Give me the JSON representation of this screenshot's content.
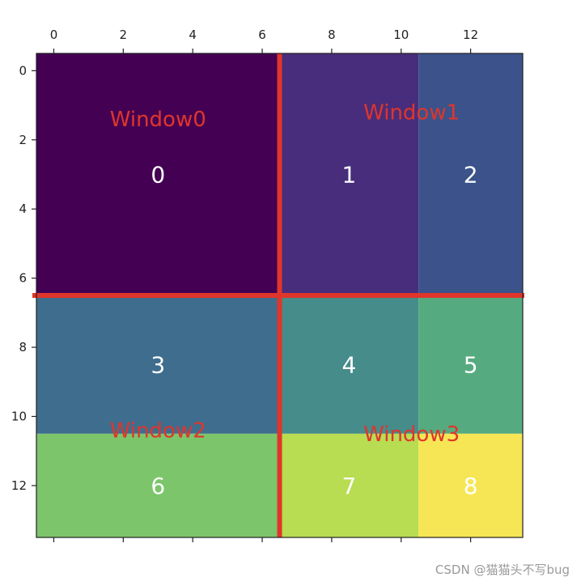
{
  "chart_data": {
    "type": "heatmap",
    "title": "",
    "xlabel": "",
    "ylabel": "",
    "xlim": [
      -0.5,
      13.5
    ],
    "ylim": [
      13.5,
      -0.5
    ],
    "xticks": [
      0,
      2,
      4,
      6,
      8,
      10,
      12
    ],
    "yticks": [
      0,
      2,
      4,
      6,
      8,
      10,
      12
    ],
    "x_axis_position": "top",
    "colormap": "viridis",
    "regions": [
      {
        "label": "0",
        "x": [
          -0.5,
          6.5
        ],
        "y": [
          -0.5,
          6.5
        ],
        "color": "#440154"
      },
      {
        "label": "1",
        "x": [
          6.5,
          10.5
        ],
        "y": [
          -0.5,
          6.5
        ],
        "color": "#472d7b"
      },
      {
        "label": "2",
        "x": [
          10.5,
          13.5
        ],
        "y": [
          -0.5,
          6.5
        ],
        "color": "#3b528b"
      },
      {
        "label": "3",
        "x": [
          -0.5,
          6.5
        ],
        "y": [
          6.5,
          10.5
        ],
        "color": "#3e6d8e"
      },
      {
        "label": "4",
        "x": [
          6.5,
          10.5
        ],
        "y": [
          6.5,
          10.5
        ],
        "color": "#458c8b"
      },
      {
        "label": "5",
        "x": [
          10.5,
          13.5
        ],
        "y": [
          6.5,
          10.5
        ],
        "color": "#55ab7f"
      },
      {
        "label": "6",
        "x": [
          -0.5,
          6.5
        ],
        "y": [
          10.5,
          13.5
        ],
        "color": "#7cc56b"
      },
      {
        "label": "7",
        "x": [
          6.5,
          10.5
        ],
        "y": [
          10.5,
          13.5
        ],
        "color": "#b8dc52"
      },
      {
        "label": "8",
        "x": [
          10.5,
          13.5
        ],
        "y": [
          10.5,
          13.5
        ],
        "color": "#f6e655"
      }
    ],
    "window_divider_lines": {
      "x": 6.5,
      "y": 6.5,
      "color": "#e0352b"
    },
    "windows": [
      {
        "label": "Window0",
        "x": 3,
        "y": 1.4
      },
      {
        "label": "Window1",
        "x": 10.3,
        "y": 1.2
      },
      {
        "label": "Window2",
        "x": 3,
        "y": 10.4
      },
      {
        "label": "Window3",
        "x": 10.3,
        "y": 10.5
      }
    ]
  },
  "watermark": "CSDN @猫猫头不写bug"
}
